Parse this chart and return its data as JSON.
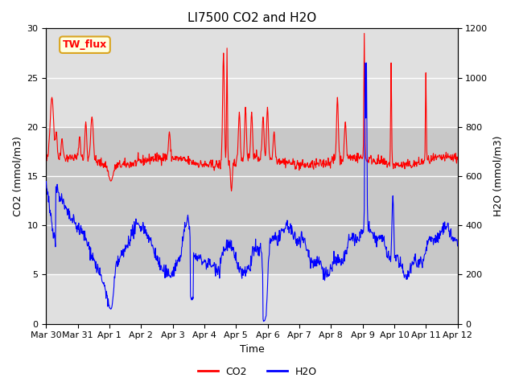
{
  "title": "LI7500 CO2 and H2O",
  "xlabel": "Time",
  "ylabel_left": "CO2 (mmol/m3)",
  "ylabel_right": "H2O (mmol/m3)",
  "annotation": "TW_flux",
  "xlim_days": [
    0,
    13.0
  ],
  "ylim_left": [
    0,
    30
  ],
  "ylim_right": [
    0,
    1200
  ],
  "xtick_labels": [
    "Mar 30",
    "Mar 31",
    "Apr 1",
    "Apr 2",
    "Apr 3",
    "Apr 4",
    "Apr 5",
    "Apr 6",
    "Apr 7",
    "Apr 8",
    "Apr 9",
    "Apr 10",
    "Apr 11",
    "Apr 12"
  ],
  "xtick_positions": [
    0,
    1,
    2,
    3,
    4,
    5,
    6,
    7,
    8,
    9,
    10,
    11,
    12,
    13
  ],
  "yticks_left": [
    0,
    5,
    10,
    15,
    20,
    25,
    30
  ],
  "yticks_right": [
    0,
    200,
    400,
    600,
    800,
    1000,
    1200
  ],
  "co2_color": "#FF0000",
  "h2o_color": "#0000FF",
  "background_color": "#FFFFFF",
  "plot_bg_color": "#E0E0E0",
  "inner_bg_color": "#C8C8C8",
  "grid_color": "#FFFFFF",
  "legend_co2": "CO2",
  "legend_h2o": "H2O",
  "title_fontsize": 11,
  "axis_label_fontsize": 9,
  "tick_fontsize": 8,
  "legend_fontsize": 9,
  "annotation_fontsize": 9,
  "linewidth": 0.8
}
